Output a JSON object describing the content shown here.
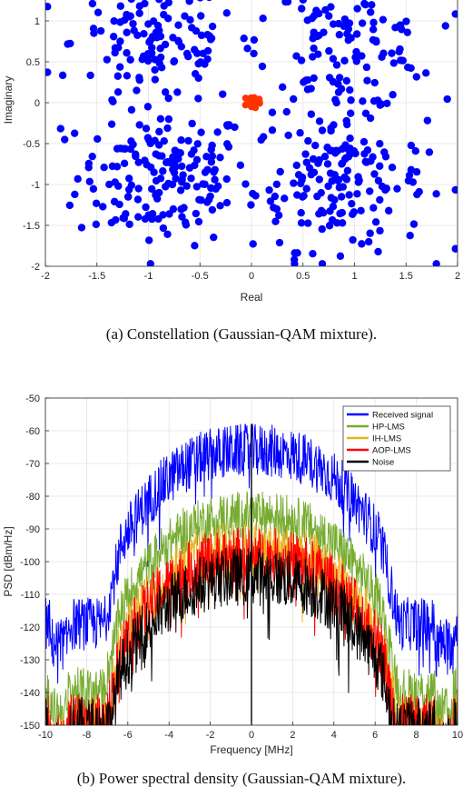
{
  "chart_data": [
    {
      "type": "scatter",
      "caption": "(a) Constellation (Gaussian-QAM mixture).",
      "xlabel": "Real",
      "ylabel": "Imaginary",
      "xlim": [
        -2,
        2
      ],
      "ylim": [
        -2,
        1.3
      ],
      "xticks": [
        "-2",
        "-1.5",
        "-1",
        "-0.5",
        "0",
        "0.5",
        "1",
        "1.5",
        "2"
      ],
      "yticks": [
        "-2",
        "-1.5",
        "-1",
        "-0.5",
        "0",
        "0.5",
        "1"
      ],
      "grid": true,
      "series": [
        {
          "color": "#0000ff",
          "clusters": [
            {
              "center": [
                -0.85,
                -0.9
              ],
              "spread": 0.42,
              "count": 170
            },
            {
              "center": [
                0.85,
                -0.95
              ],
              "spread": 0.42,
              "count": 170
            },
            {
              "center": [
                -0.9,
                0.75
              ],
              "spread": 0.42,
              "count": 130
            },
            {
              "center": [
                0.9,
                0.75
              ],
              "spread": 0.42,
              "count": 130
            }
          ]
        },
        {
          "color": "#ff3300",
          "clusters": [
            {
              "center": [
                0.01,
                0.01
              ],
              "spread": 0.04,
              "count": 40
            }
          ]
        }
      ]
    },
    {
      "type": "line",
      "caption": "(b) Power spectral density (Gaussian-QAM mixture).",
      "xlabel": "Frequency [MHz]",
      "ylabel": "PSD [dBm/Hz]",
      "xlim": [
        -10,
        10
      ],
      "ylim": [
        -150,
        -50
      ],
      "xticks": [
        "-10",
        "-8",
        "-6",
        "-4",
        "-2",
        "0",
        "2",
        "4",
        "6",
        "8",
        "10"
      ],
      "yticks": [
        "-50",
        "-60",
        "-70",
        "-80",
        "-90",
        "-100",
        "-110",
        "-120",
        "-130",
        "-140",
        "-150"
      ],
      "grid": true,
      "legend_position": "top-right",
      "series": [
        {
          "name": "Received signal",
          "color": "#0000ff",
          "peak_dbm_hz": -62,
          "band_edge_mhz": 6.3,
          "floor_dbm_hz": -115,
          "ripple_db": 9
        },
        {
          "name": "HP-LMS",
          "color": "#77ac30",
          "peak_dbm_hz": -82,
          "band_edge_mhz": 6.3,
          "floor_dbm_hz": -136,
          "ripple_db": 8
        },
        {
          "name": "IH-LMS",
          "color": "#edb120",
          "peak_dbm_hz": -92,
          "band_edge_mhz": 6.3,
          "floor_dbm_hz": -145,
          "ripple_db": 10
        },
        {
          "name": "AOP-LMS",
          "color": "#ff0000",
          "peak_dbm_hz": -94,
          "band_edge_mhz": 6.3,
          "floor_dbm_hz": -145,
          "ripple_db": 10
        },
        {
          "name": "Noise",
          "color": "#000000",
          "peak_dbm_hz": -100,
          "band_edge_mhz": 6.3,
          "floor_dbm_hz": -146,
          "ripple_db": 10
        }
      ]
    }
  ]
}
